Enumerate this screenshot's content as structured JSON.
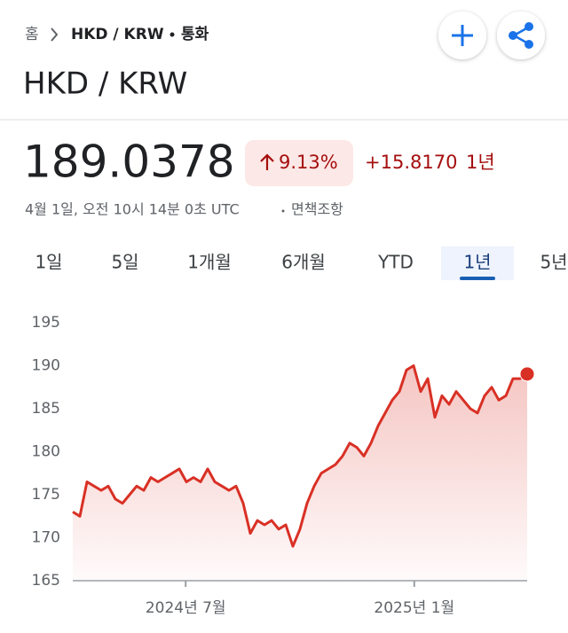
{
  "header": {
    "breadcrumb": [
      "홈",
      "HKD / KRW",
      "통화"
    ],
    "title": "HKD / KRW"
  },
  "quote": {
    "price": "189.0378",
    "change_percent": "9.13%",
    "change": "+15.8170",
    "period": "1년",
    "timestamp": "4월 1일, 오전 10시 14분 0초 UTC",
    "disclaimer": "면책조항"
  },
  "tabs": [
    {
      "label": "1일"
    },
    {
      "label": "5일"
    },
    {
      "label": "1개월"
    },
    {
      "label": "6개월"
    },
    {
      "label": "YTD"
    },
    {
      "label": "1년",
      "selected": true
    },
    {
      "label": "5년"
    }
  ],
  "chart_data": {
    "type": "line",
    "color": "#d93025",
    "values": [
      173,
      172.5,
      176.5,
      176,
      175.5,
      176,
      174.5,
      174,
      175,
      176,
      175.5,
      177,
      176.5,
      177,
      177.5,
      178,
      176.5,
      177,
      176.5,
      178,
      176.5,
      176,
      175.5,
      176,
      174,
      170.5,
      172,
      171.5,
      172,
      171,
      171.5,
      169,
      171,
      174,
      176,
      177.5,
      178,
      178.5,
      179.5,
      181,
      180.5,
      179.5,
      181,
      183,
      184.5,
      186,
      187,
      189.5,
      190,
      187,
      188.5,
      184,
      186.5,
      185.5,
      187,
      186,
      185,
      184.5,
      186.5,
      187.5,
      186,
      186.5,
      188.5,
      188.5,
      189.0378
    ],
    "xlim": [
      0,
      64
    ],
    "xticks": [
      {
        "value": 15.9,
        "label": "2024년 7월"
      },
      {
        "value": 48.1,
        "label": "2025년 1월"
      }
    ],
    "ylim": [
      165,
      195
    ],
    "yticks": [
      165,
      170,
      175,
      180,
      185,
      190,
      195
    ]
  }
}
